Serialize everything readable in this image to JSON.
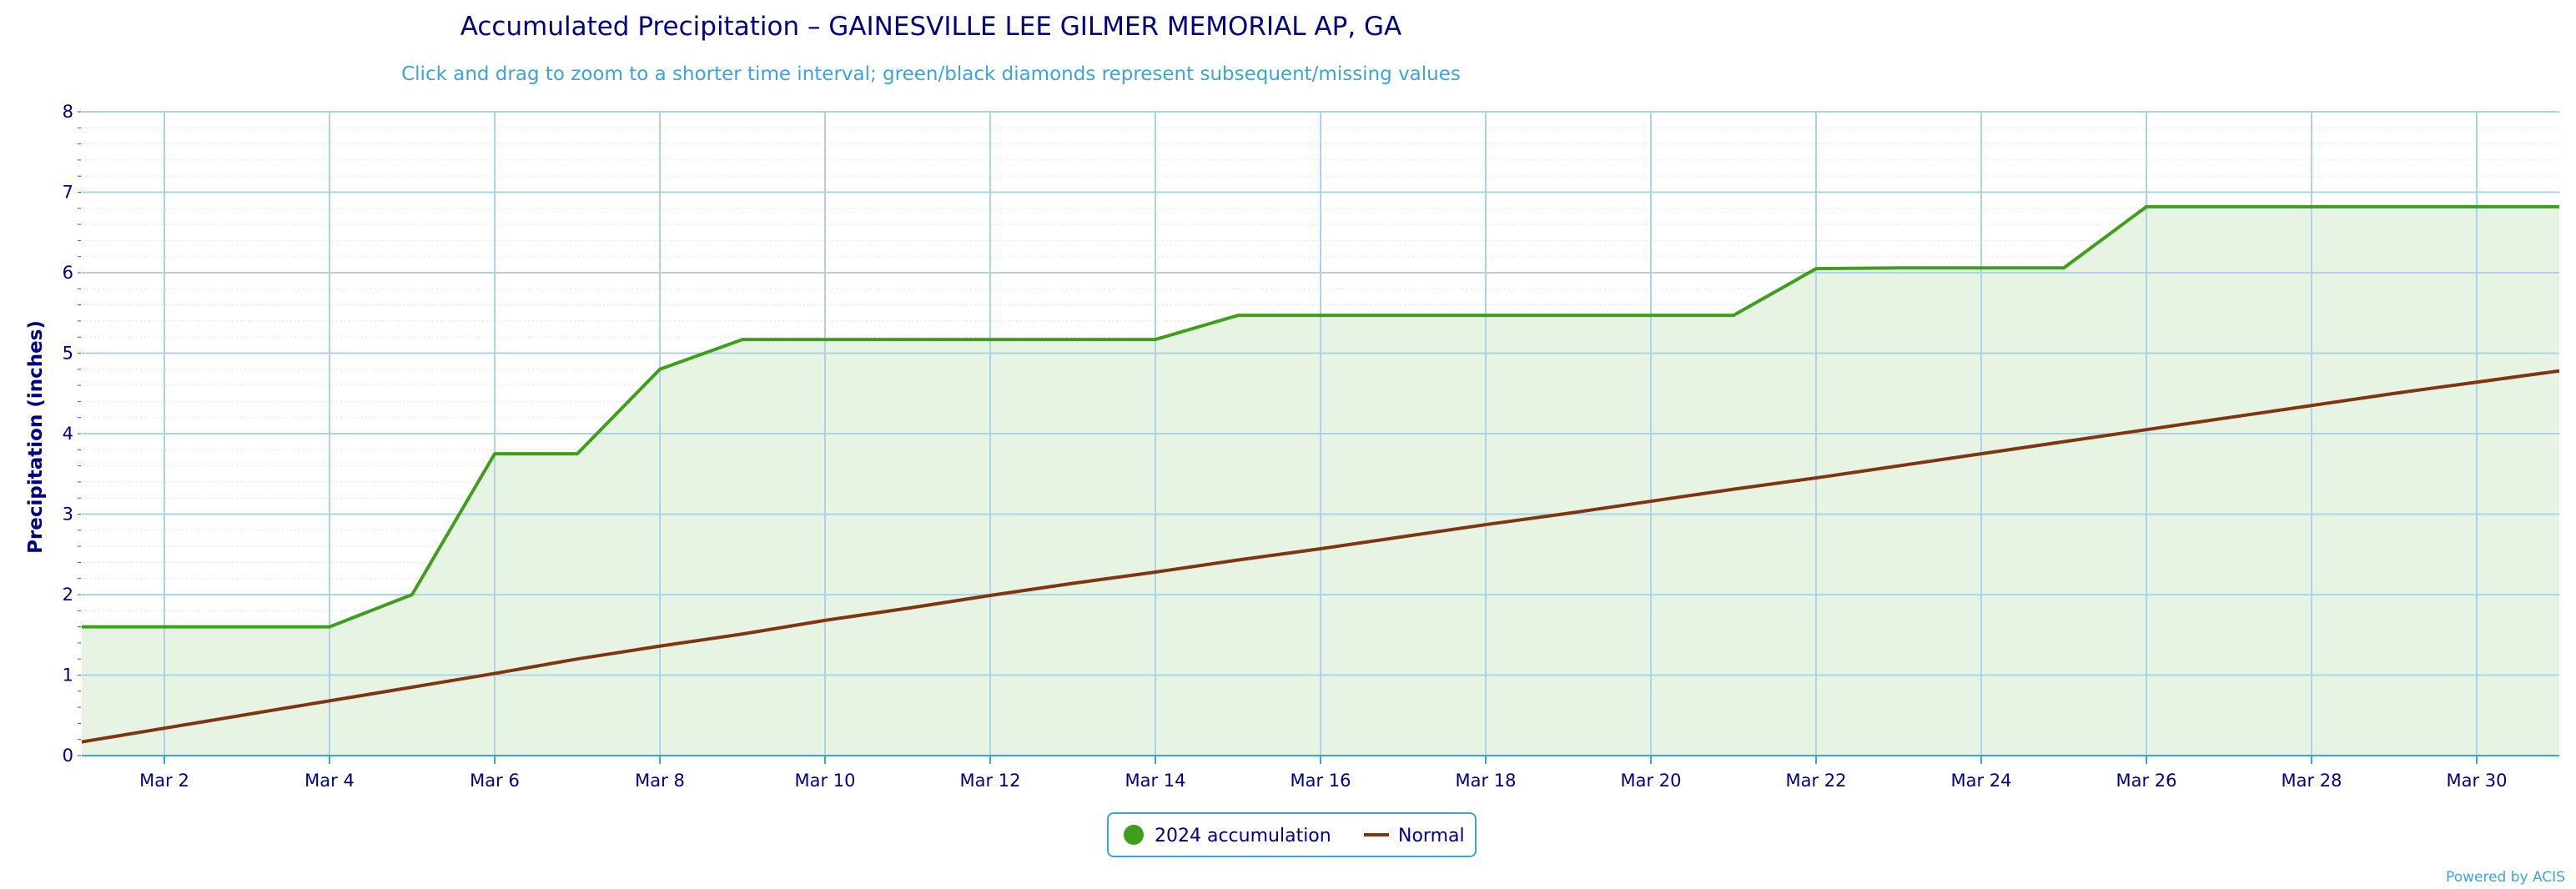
{
  "chart_data": {
    "type": "area",
    "title": "Accumulated Precipitation – GAINESVILLE LEE GILMER MEMORIAL AP, GA",
    "subtitle": "Click and drag to zoom to a shorter time interval; green/black diamonds represent subsequent/missing values",
    "ylabel": "Precipitation (inches)",
    "xlabel": "",
    "ylim": [
      0,
      8
    ],
    "yticks": [
      "0",
      "1",
      "2",
      "3",
      "4",
      "5",
      "6",
      "7",
      "8"
    ],
    "xlim": [
      "Mar 1",
      "Mar 31"
    ],
    "xticks": [
      {
        "day": 2,
        "label": "Mar 2"
      },
      {
        "day": 4,
        "label": "Mar 4"
      },
      {
        "day": 6,
        "label": "Mar 6"
      },
      {
        "day": 8,
        "label": "Mar 8"
      },
      {
        "day": 10,
        "label": "Mar 10"
      },
      {
        "day": 12,
        "label": "Mar 12"
      },
      {
        "day": 14,
        "label": "Mar 14"
      },
      {
        "day": 16,
        "label": "Mar 16"
      },
      {
        "day": 18,
        "label": "Mar 18"
      },
      {
        "day": 20,
        "label": "Mar 20"
      },
      {
        "day": 22,
        "label": "Mar 22"
      },
      {
        "day": 24,
        "label": "Mar 24"
      },
      {
        "day": 26,
        "label": "Mar 26"
      },
      {
        "day": 28,
        "label": "Mar 28"
      },
      {
        "day": 30,
        "label": "Mar 30"
      }
    ],
    "grid": true,
    "legend_position": "bottom-center",
    "series": [
      {
        "name": "2024 accumulation",
        "color": "#3f9f1d",
        "fill": "#e8f4e3",
        "x": [
          1,
          2,
          3,
          4,
          5,
          6,
          7,
          8,
          9,
          10,
          11,
          12,
          13,
          14,
          15,
          16,
          17,
          18,
          19,
          20,
          21,
          22,
          23,
          24,
          25,
          26,
          27,
          28,
          29,
          30,
          31
        ],
        "values": [
          1.6,
          1.6,
          1.6,
          1.6,
          2.0,
          3.75,
          3.75,
          4.8,
          5.17,
          5.17,
          5.17,
          5.17,
          5.17,
          5.17,
          5.47,
          5.47,
          5.47,
          5.47,
          5.47,
          5.47,
          5.47,
          6.05,
          6.06,
          6.06,
          6.06,
          6.82,
          6.82,
          6.82,
          6.82,
          6.82,
          6.82
        ]
      },
      {
        "name": "Normal",
        "color": "#7f3510",
        "x": [
          1,
          2,
          3,
          4,
          5,
          6,
          7,
          8,
          9,
          10,
          11,
          12,
          13,
          14,
          15,
          16,
          17,
          18,
          19,
          20,
          21,
          22,
          23,
          24,
          25,
          26,
          27,
          28,
          29,
          30,
          31
        ],
        "values": [
          0.17,
          0.34,
          0.51,
          0.68,
          0.85,
          1.02,
          1.2,
          1.36,
          1.51,
          1.68,
          1.83,
          1.99,
          2.14,
          2.28,
          2.43,
          2.57,
          2.72,
          2.87,
          3.01,
          3.16,
          3.31,
          3.45,
          3.6,
          3.75,
          3.9,
          4.05,
          4.2,
          4.35,
          4.5,
          4.64,
          4.78
        ]
      }
    ]
  },
  "credit": "Powered by ACIS"
}
